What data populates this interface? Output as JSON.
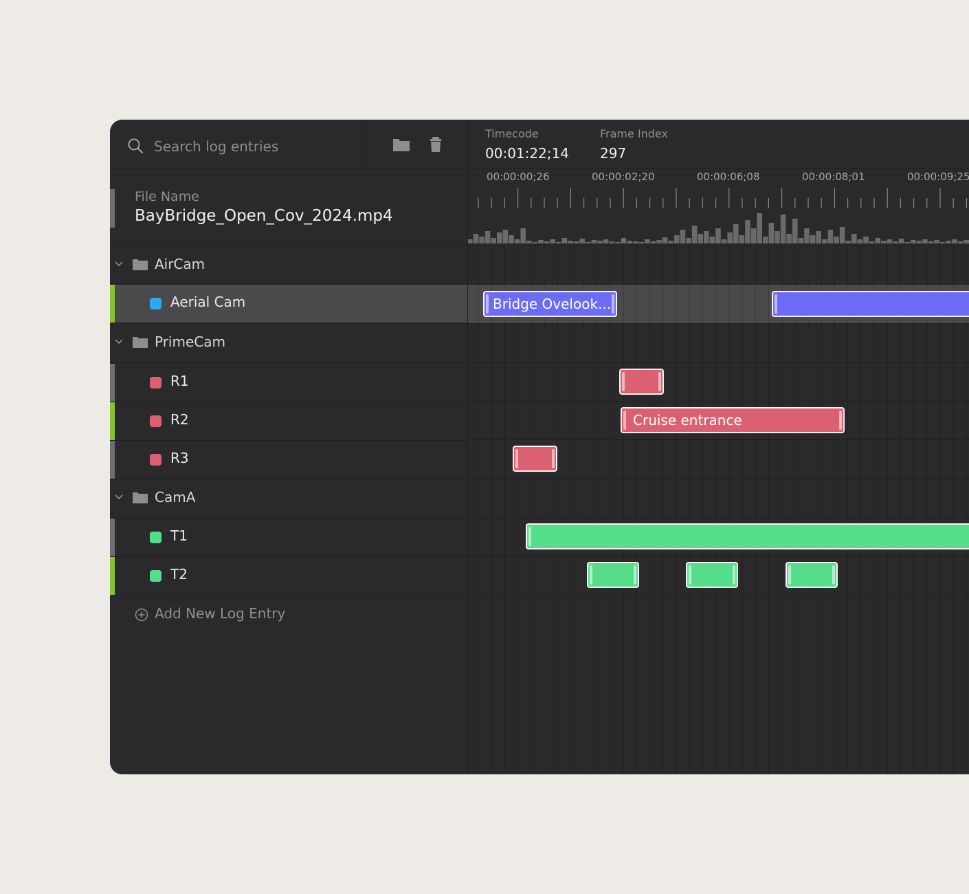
{
  "search": {
    "placeholder": "Search log entries"
  },
  "toolbar": {
    "folder_icon": "folder-icon",
    "delete_icon": "trash-icon"
  },
  "file": {
    "label": "File Name",
    "name": "BayBridge_Open_Cov_2024.mp4"
  },
  "header": {
    "timecode_label": "Timecode",
    "timecode_value": "00:01:22;14",
    "frame_label": "Frame Index",
    "frame_value": "297"
  },
  "ruler": {
    "labels": [
      "00:00:00;26",
      "00:00:02;20",
      "00:00:06;08",
      "00:00:08;01",
      "00:00:09;25"
    ]
  },
  "groups": [
    {
      "label": "AirCam",
      "tracks": [
        {
          "label": "Aerial Cam",
          "color": "#2ea8f3",
          "selected": true
        }
      ]
    },
    {
      "label": "PrimeCam",
      "tracks": [
        {
          "label": "R1",
          "color": "#dc6170"
        },
        {
          "label": "R2",
          "color": "#dc6170"
        },
        {
          "label": "R3",
          "color": "#dc6170"
        }
      ]
    },
    {
      "label": "CamA",
      "tracks": [
        {
          "label": "T1",
          "color": "#56dd8a"
        },
        {
          "label": "T2",
          "color": "#56dd8a"
        }
      ]
    }
  ],
  "clips": {
    "aerial_1": "Bridge Ovelook...",
    "r2_1": "Cruise entrance"
  },
  "add_entry": {
    "label": "Add New Log Entry"
  },
  "colors": {
    "accent_green": "#86c232",
    "purple": "#6b6bf5",
    "red": "#dc6170",
    "green": "#56dd8a",
    "blue": "#2ea8f3"
  }
}
